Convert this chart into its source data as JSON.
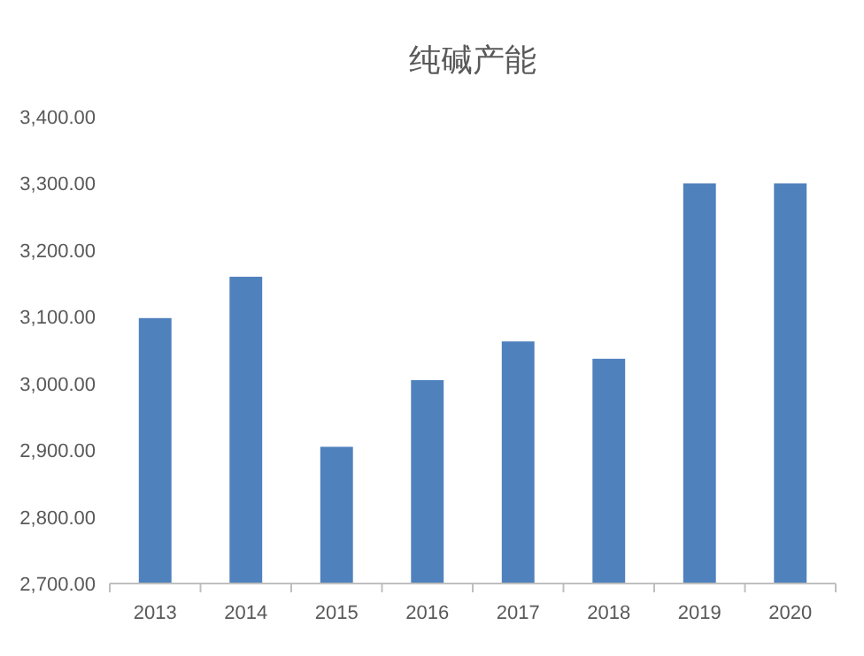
{
  "chart_data": {
    "type": "bar",
    "title": "纯碱产能",
    "categories": [
      "2013",
      "2014",
      "2015",
      "2016",
      "2017",
      "2018",
      "2019",
      "2020"
    ],
    "values": [
      3098,
      3160,
      2905,
      3005,
      3063,
      3037,
      3300,
      3300
    ],
    "color": "#4f81bd",
    "ylim": [
      2700,
      3400
    ],
    "yticks": [
      {
        "value": 2700,
        "label": "2,700.00"
      },
      {
        "value": 2800,
        "label": "2,800.00"
      },
      {
        "value": 2900,
        "label": "2,900.00"
      },
      {
        "value": 3000,
        "label": "3,000.00"
      },
      {
        "value": 3100,
        "label": "3,100.00"
      },
      {
        "value": 3200,
        "label": "3,200.00"
      },
      {
        "value": 3300,
        "label": "3,300.00"
      },
      {
        "value": 3400,
        "label": "3,400.00"
      }
    ]
  }
}
